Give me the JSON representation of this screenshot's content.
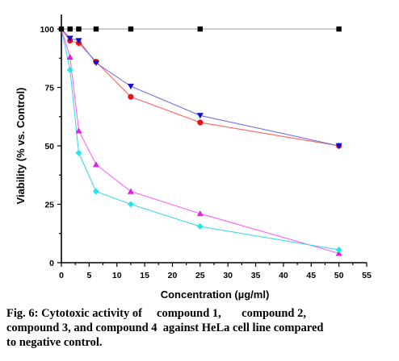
{
  "chart_data": {
    "type": "line",
    "xlabel": "Concentration (µg/ml)",
    "ylabel": "Viability (% vs. Control)",
    "xlim": [
      0,
      55
    ],
    "ylim": [
      0,
      100
    ],
    "x_ticks": [
      "0",
      "5",
      "10",
      "15",
      "20",
      "25",
      "30",
      "35",
      "40",
      "45",
      "50",
      "55"
    ],
    "y_ticks": [
      "0",
      "25",
      "50",
      "75",
      "100"
    ],
    "series": [
      {
        "color": "#000000",
        "marker": "square",
        "line_color": "#999999",
        "x": [
          0,
          1.56,
          3.13,
          6.25,
          12.5,
          25,
          50
        ],
        "y": [
          100,
          100,
          100,
          100,
          100,
          100,
          100
        ]
      },
      {
        "color": "#e8141c",
        "marker": "circle",
        "line_color": "#ff6060",
        "x": [
          0,
          1.56,
          3.13,
          6.25,
          12.5,
          25,
          50
        ],
        "y": [
          100,
          95,
          94,
          86,
          71,
          60,
          50
        ]
      },
      {
        "color": "#1010d0",
        "marker": "triangle-down",
        "line_color": "#7070e0",
        "x": [
          0,
          1.56,
          3.13,
          6.25,
          12.5,
          25,
          50
        ],
        "y": [
          100,
          96,
          95,
          85.5,
          75.5,
          63,
          50
        ]
      },
      {
        "color": "#e020e0",
        "marker": "triangle-up",
        "line_color": "#ff60ff",
        "x": [
          0,
          1.56,
          3.13,
          6.25,
          12.5,
          25,
          50
        ],
        "y": [
          100,
          88,
          56.5,
          42,
          30.5,
          21,
          4
        ]
      },
      {
        "color": "#20e8e8",
        "marker": "diamond",
        "line_color": "#40d8e8",
        "x": [
          0,
          1.56,
          3.13,
          6.25,
          12.5,
          25,
          50
        ],
        "y": [
          100,
          82.5,
          47,
          30.5,
          25,
          15.5,
          5.5
        ]
      }
    ],
    "grid": false
  },
  "caption": {
    "line1": "Fig. 6: Cytotoxic activity of     compound 1,       compound 2,",
    "line2": "compound 3, and compound 4  against HeLa cell line compared",
    "line3": "to negative control."
  }
}
